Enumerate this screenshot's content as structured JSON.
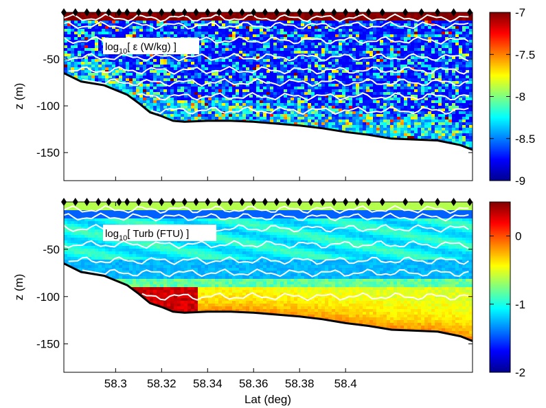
{
  "chart_data": [
    {
      "type": "heatmap",
      "panel": "top",
      "annotation": {
        "prefix": "log",
        "subscript": "10",
        "suffix": "[ ε (W/kg) ]"
      },
      "xlabel": "",
      "ylabel": "z (m)",
      "xlim": [
        58.2775,
        58.4552
      ],
      "ylim": [
        -180,
        0
      ],
      "yticks": [
        -50,
        -100,
        -150
      ],
      "ytick_labels": [
        "-50",
        "-100",
        "-150"
      ],
      "xticks": [
        58.3,
        58.32,
        58.34,
        58.36,
        58.38,
        58.4
      ],
      "xtick_labels": [
        "",
        "",
        "",
        "",
        "",
        ""
      ],
      "colorbar": {
        "min": -9,
        "max": -7,
        "ticks": [
          -7,
          -7.5,
          -8,
          -8.5,
          -9
        ],
        "tick_labels": [
          "-7",
          "-7.5",
          "-8",
          "-8.5",
          "-9"
        ],
        "colormap": "jet"
      },
      "contour_color": "#ffffff",
      "bottom_line_color": "#000000"
    },
    {
      "type": "heatmap",
      "panel": "bottom",
      "annotation": {
        "prefix": "log",
        "subscript": "10",
        "suffix": "[ Turb (FTU) ]"
      },
      "xlabel": "Lat (deg)",
      "ylabel": "z (m)",
      "xlim": [
        58.2775,
        58.4552
      ],
      "ylim": [
        -180,
        0
      ],
      "yticks": [
        -50,
        -100,
        -150
      ],
      "ytick_labels": [
        "-50",
        "-100",
        "-150"
      ],
      "xticks": [
        58.3,
        58.32,
        58.34,
        58.36,
        58.38,
        58.4
      ],
      "xtick_labels": [
        "58.3",
        "58.32",
        "58.34",
        "58.36",
        "58.38",
        "58.4"
      ],
      "colorbar": {
        "min": -2,
        "max": 0.5,
        "ticks": [
          0,
          -1,
          -2
        ],
        "tick_labels": [
          "0",
          "-1",
          "-2"
        ],
        "colormap": "jet"
      },
      "contour_color": "#ffffff",
      "bottom_line_color": "#000000"
    }
  ],
  "stations_lat": [
    58.2775,
    58.2825,
    58.2875,
    58.2925,
    58.297,
    58.3015,
    58.305,
    58.31,
    58.315,
    58.32,
    58.325,
    58.33,
    58.335,
    58.34,
    58.345,
    58.35,
    58.355,
    58.36,
    58.365,
    58.37,
    58.375,
    58.38,
    58.385,
    58.39,
    58.395,
    58.4,
    58.405,
    58.41,
    58.416,
    58.426,
    58.433,
    58.44,
    58.447,
    58.454
  ],
  "bottom_profile": {
    "lat": [
      58.2775,
      58.285,
      58.295,
      58.305,
      58.31,
      58.315,
      58.32,
      58.325,
      58.33,
      58.34,
      58.35,
      58.36,
      58.37,
      58.38,
      58.39,
      58.4,
      58.41,
      58.42,
      58.43,
      58.44,
      58.45,
      58.4552
    ],
    "depth": [
      -65,
      -74,
      -78,
      -88,
      -97,
      -107,
      -111,
      -116,
      -117,
      -116,
      -116,
      -117,
      -119,
      -121,
      -124,
      -128,
      -131,
      -135,
      -136,
      -137,
      -142,
      -147
    ]
  }
}
